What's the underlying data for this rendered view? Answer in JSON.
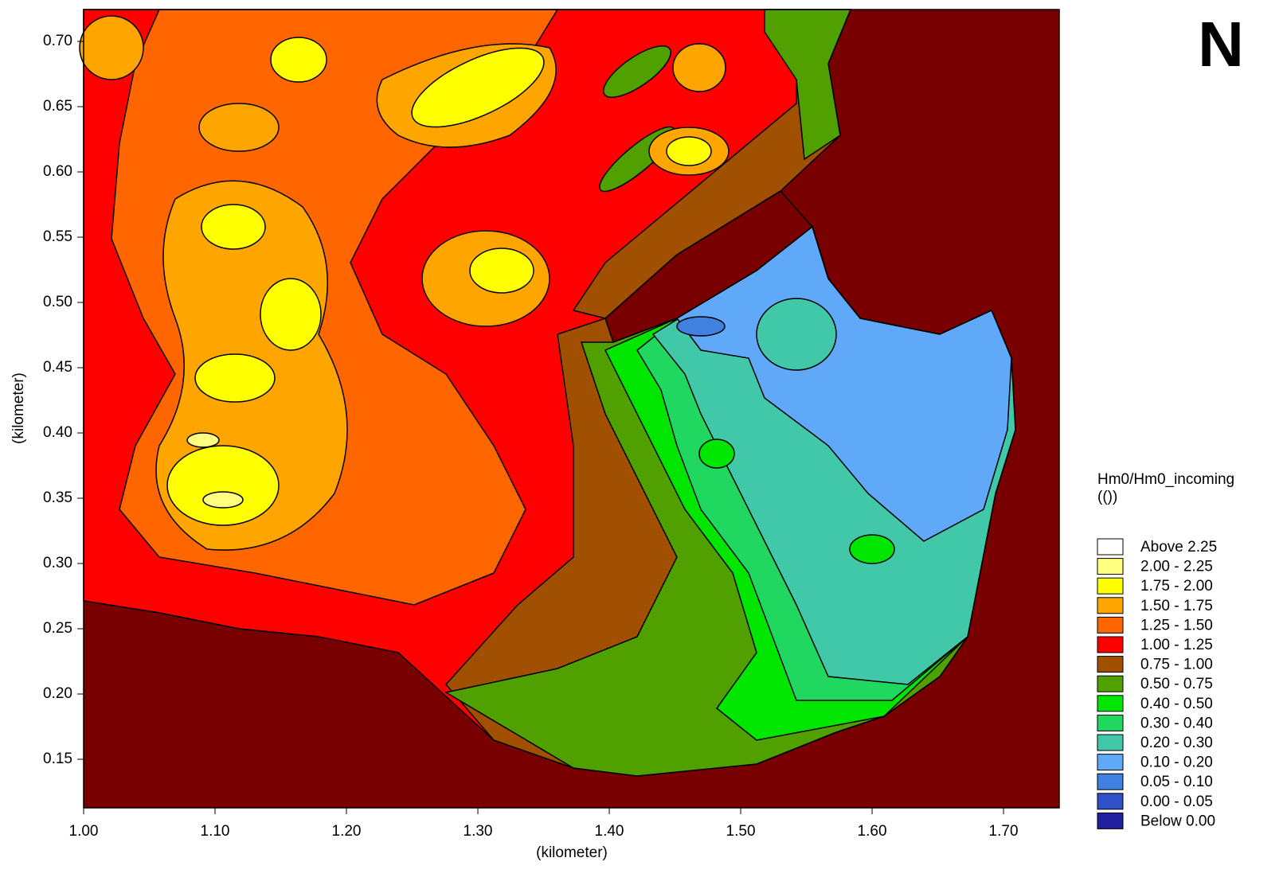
{
  "chart_data": {
    "type": "contour",
    "annotation": "N",
    "xlabel": "(kilometer)",
    "ylabel": "(kilometer)",
    "xlim": [
      1.0,
      1.7424
    ],
    "ylim": [
      0.1128,
      0.7244
    ],
    "xticks": [
      {
        "value": 1.0,
        "label": "1.00"
      },
      {
        "value": 1.1,
        "label": "1.10"
      },
      {
        "value": 1.2,
        "label": "1.20"
      },
      {
        "value": 1.3,
        "label": "1.30"
      },
      {
        "value": 1.4,
        "label": "1.40"
      },
      {
        "value": 1.5,
        "label": "1.50"
      },
      {
        "value": 1.6,
        "label": "1.60"
      },
      {
        "value": 1.7,
        "label": "1.70"
      }
    ],
    "yticks": [
      {
        "value": 0.15,
        "label": "0.15"
      },
      {
        "value": 0.2,
        "label": "0.20"
      },
      {
        "value": 0.25,
        "label": "0.25"
      },
      {
        "value": 0.3,
        "label": "0.30"
      },
      {
        "value": 0.35,
        "label": "0.35"
      },
      {
        "value": 0.4,
        "label": "0.40"
      },
      {
        "value": 0.45,
        "label": "0.45"
      },
      {
        "value": 0.5,
        "label": "0.50"
      },
      {
        "value": 0.55,
        "label": "0.55"
      },
      {
        "value": 0.6,
        "label": "0.60"
      },
      {
        "value": 0.65,
        "label": "0.65"
      },
      {
        "value": 0.7,
        "label": "0.70"
      }
    ],
    "legend": {
      "title": "Hm0/Hm0_incoming",
      "unit": "(())",
      "levels": [
        {
          "label": "Above 2.25",
          "color": "#ffffff"
        },
        {
          "label": "2.00 - 2.25",
          "color": "#ffff80"
        },
        {
          "label": "1.75 - 2.00",
          "color": "#ffff00"
        },
        {
          "label": "1.50 - 1.75",
          "color": "#ffa500"
        },
        {
          "label": "1.25 - 1.50",
          "color": "#ff6600"
        },
        {
          "label": "1.00 - 1.25",
          "color": "#ff0000"
        },
        {
          "label": "0.75 - 1.00",
          "color": "#a05000"
        },
        {
          "label": "0.50 - 0.75",
          "color": "#50a000"
        },
        {
          "label": "0.40 - 0.50",
          "color": "#00e600"
        },
        {
          "label": "0.30 - 0.40",
          "color": "#20d860"
        },
        {
          "label": "0.20 - 0.30",
          "color": "#40c8a8"
        },
        {
          "label": "0.10 - 0.20",
          "color": "#60a8f8"
        },
        {
          "label": "0.05 - 0.10",
          "color": "#4080e0"
        },
        {
          "label": "0.00 - 0.05",
          "color": "#3050c8"
        },
        {
          "label": "Below 0.00",
          "color": "#2020a0"
        }
      ]
    }
  }
}
